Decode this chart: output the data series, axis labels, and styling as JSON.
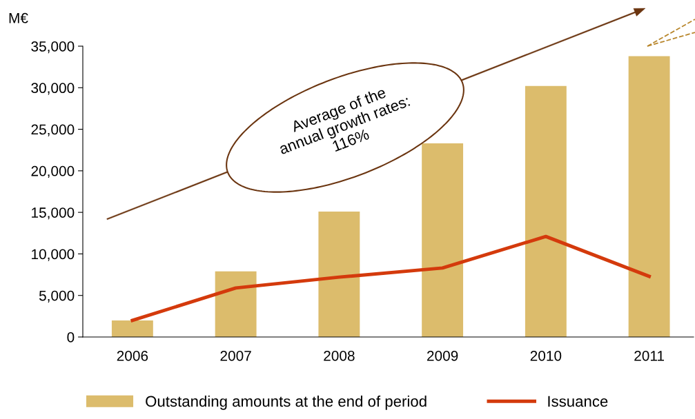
{
  "chart_data": {
    "type": "bar",
    "ylabel": "M€",
    "categories": [
      "2006",
      "2007",
      "2008",
      "2009",
      "2010",
      "2011"
    ],
    "series": [
      {
        "name": "Outstanding amounts at the end of period",
        "color": "#dcbc6c",
        "values": [
          2000,
          7900,
          15100,
          23300,
          30200,
          33800
        ]
      },
      {
        "name": "Issuance",
        "type": "line",
        "color": "#d43a0c",
        "values": [
          2000,
          5900,
          7200,
          8300,
          12100,
          7300
        ]
      }
    ],
    "ylim": [
      0,
      35000
    ],
    "yticks": [
      {
        "value": 0,
        "label": "0"
      },
      {
        "value": 5000,
        "label": "5,000"
      },
      {
        "value": 10000,
        "label": "10,000"
      },
      {
        "value": 15000,
        "label": "15,000"
      },
      {
        "value": 20000,
        "label": "20,000"
      },
      {
        "value": 25000,
        "label": "25,000"
      },
      {
        "value": 30000,
        "label": "30,000"
      },
      {
        "value": 35000,
        "label": "35,000"
      }
    ],
    "annotations": [
      "Average of the\nannual growth rates:\n116%"
    ],
    "grid": false,
    "legend": "bottom",
    "marker": "none",
    "line_style": "solid"
  }
}
